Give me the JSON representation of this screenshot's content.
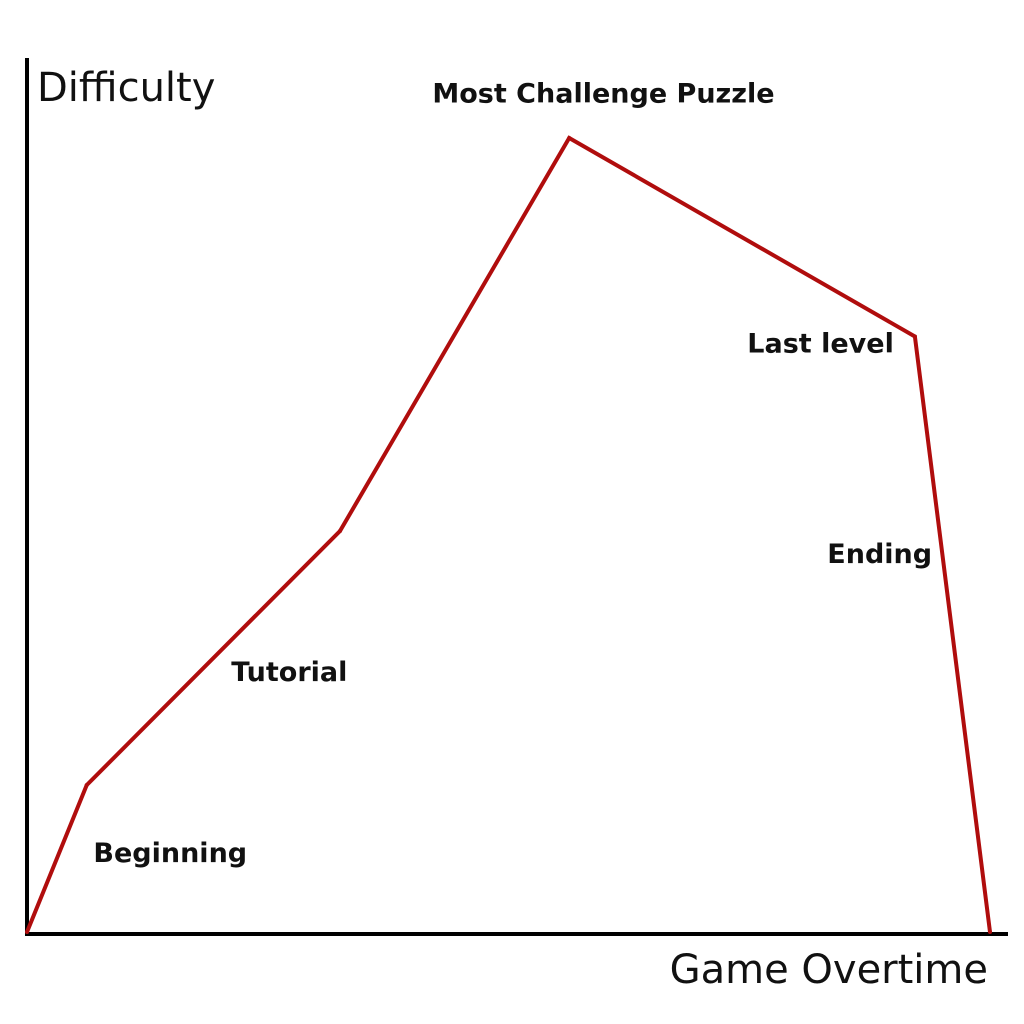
{
  "chart_data": {
    "type": "line",
    "title": "",
    "xlabel": "Game Overtime",
    "ylabel": "Difficulty",
    "grid": false,
    "series": [
      {
        "color": "#b00d0d",
        "points": [
          {
            "x": 0.0,
            "y": 0.0
          },
          {
            "x": 6.2,
            "y": 18.5
          },
          {
            "x": 32.5,
            "y": 50.5
          },
          {
            "x": 56.3,
            "y": 100.0
          },
          {
            "x": 92.2,
            "y": 75.0
          },
          {
            "x": 100.0,
            "y": 0.0
          }
        ]
      }
    ],
    "annotations": [
      {
        "text": "Beginning",
        "x": 6.9,
        "y": 8.8
      },
      {
        "text": "Tutorial",
        "x": 21.2,
        "y": 31.6
      },
      {
        "text": "Most Challenge Puzzle",
        "x": 42.1,
        "y": 104.5
      },
      {
        "text": "Last level",
        "x": 74.8,
        "y": 73.0
      },
      {
        "text": "Ending",
        "x": 83.1,
        "y": 46.5
      }
    ]
  }
}
